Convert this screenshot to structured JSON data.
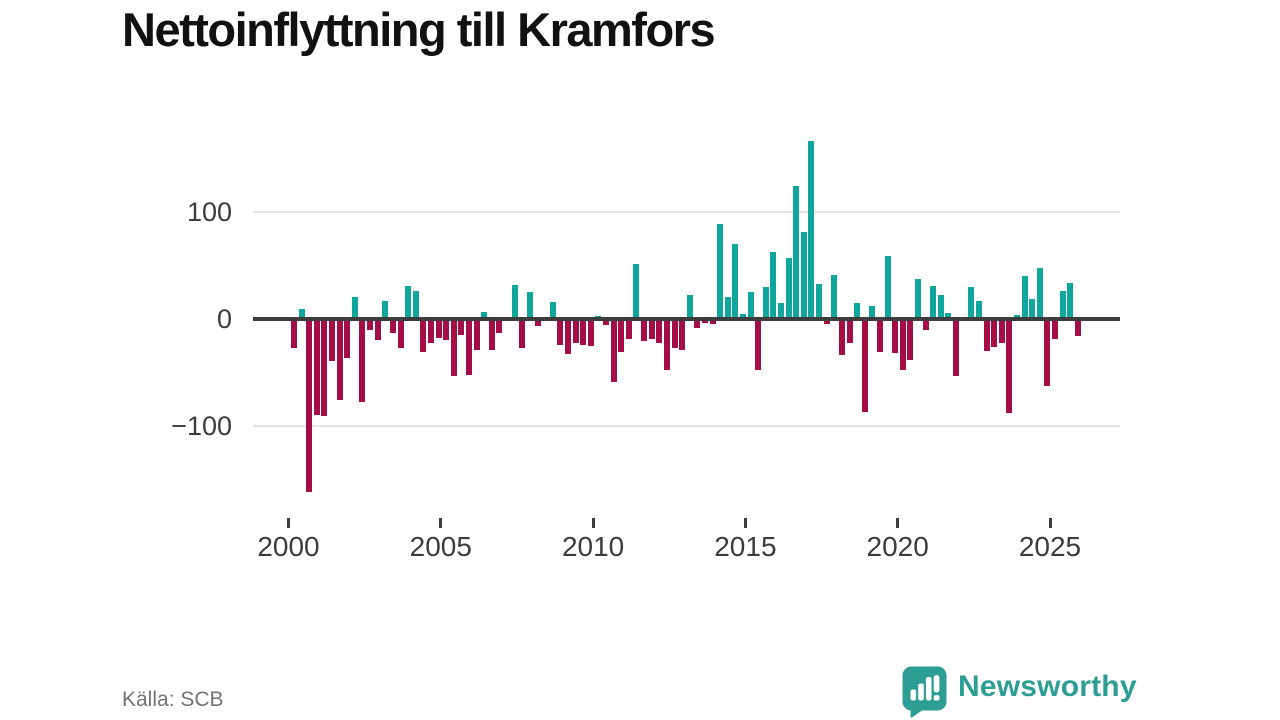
{
  "title": "Nettoinflyttning till Kramfors",
  "source": "Källa: SCB",
  "branding": {
    "name": "Newsworthy",
    "icon": "newsworthy-bar-chart-bubble-icon"
  },
  "colors": {
    "positive_bar": "#0fa69c",
    "negative_bar": "#a50d45",
    "axis": "#3d3d3d",
    "gridline": "#e4e4e4",
    "tick_label": "#3c3c3c",
    "title_text": "#111111",
    "source_text": "#747474",
    "brand_teal": "#2d9e93"
  },
  "chart_data": {
    "type": "bar",
    "title": "Nettoinflyttning till Kramfors",
    "xlabel": "",
    "ylabel": "",
    "x_start_year": 2000,
    "bars_per_year": 4,
    "x_tick_labels": [
      "2000",
      "2005",
      "2010",
      "2015",
      "2020",
      "2025"
    ],
    "x_tick_years": [
      2000,
      2005,
      2010,
      2015,
      2020,
      2025
    ],
    "y_ticks": [
      100,
      0,
      -100
    ],
    "y_tick_labels": [
      "100",
      "0",
      "−100"
    ],
    "ylim": [
      -175,
      185
    ],
    "grid": "horizontal",
    "legend": "none",
    "values": [
      -27,
      9,
      -162,
      -90,
      -91,
      -39,
      -76,
      -36,
      21,
      -78,
      -10,
      -20,
      17,
      -13,
      -27,
      31,
      26,
      -31,
      -22,
      -18,
      -20,
      -53,
      -15,
      -52,
      -29,
      7,
      -29,
      -13,
      0,
      32,
      -27,
      25,
      -7,
      0,
      16,
      -24,
      -33,
      -22,
      -24,
      -25,
      3,
      -6,
      -59,
      -31,
      -19,
      51,
      -21,
      -19,
      -22,
      -48,
      -27,
      -29,
      22,
      -8,
      -4,
      -5,
      89,
      21,
      70,
      5,
      25,
      -48,
      30,
      63,
      15,
      57,
      124,
      81,
      166,
      33,
      -5,
      41,
      -34,
      -22,
      15,
      -87,
      12,
      -31,
      59,
      -32,
      -48,
      -38,
      37,
      -10,
      31,
      22,
      6,
      -53,
      0,
      30,
      17,
      -30,
      -26,
      -22,
      -88,
      4,
      40,
      19,
      48,
      -63,
      -19,
      26,
      34,
      -16
    ]
  }
}
